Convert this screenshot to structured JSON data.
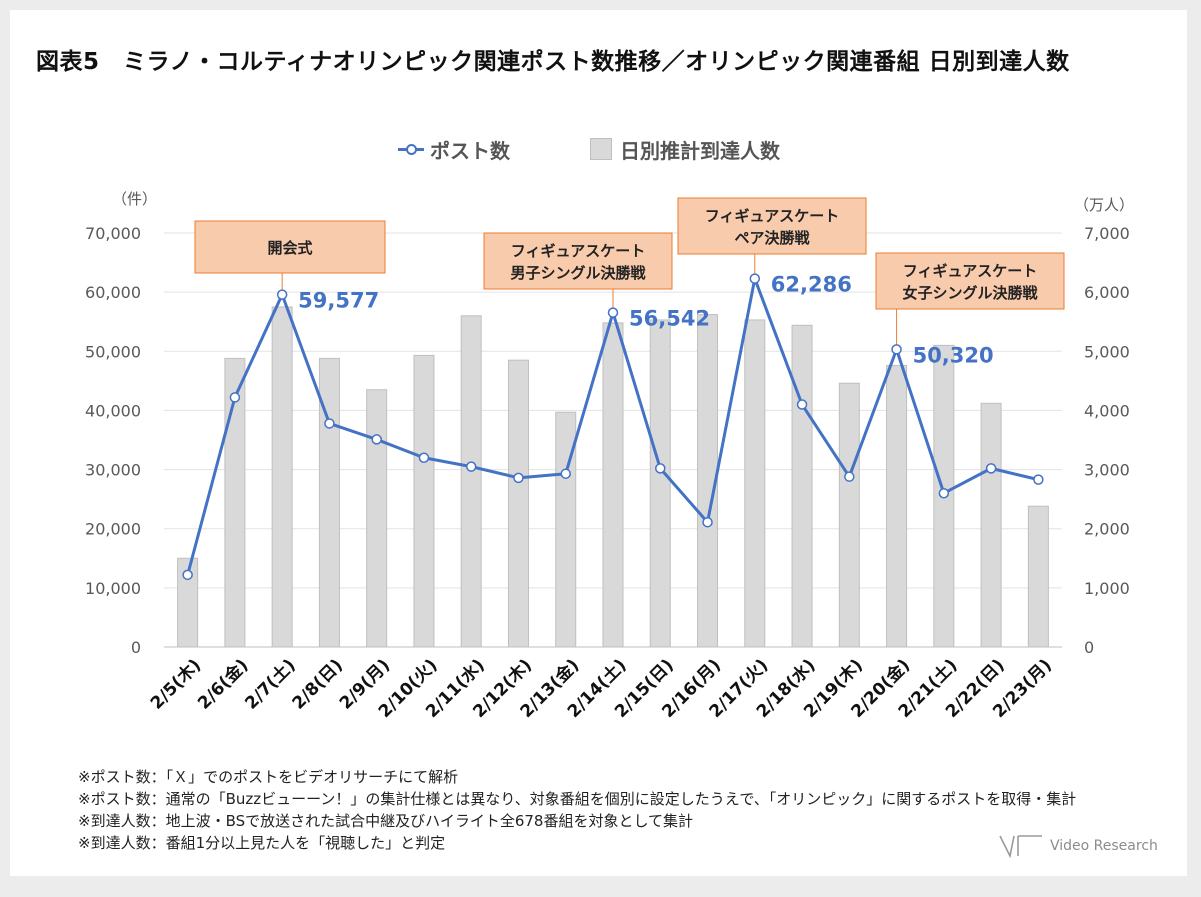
{
  "title": "図表5　ミラノ・コルティナオリンピック関連ポスト数推移／オリンピック関連番組 日別到達人数",
  "legend": {
    "line_label": "ポスト数",
    "bar_label": "日別推計到達人数"
  },
  "colors": {
    "line": "#4472c4",
    "bar": "#d9d9d9",
    "bar_stroke": "#bfbfbf",
    "callout_fill": "#f8cbad",
    "callout_border": "#ed7d31",
    "value_label": "#4472c4"
  },
  "chart_data": {
    "type": "bar",
    "categories": [
      "2/5(木)",
      "2/6(金)",
      "2/7(土)",
      "2/8(日)",
      "2/9(月)",
      "2/10(火)",
      "2/11(水)",
      "2/12(木)",
      "2/13(金)",
      "2/14(土)",
      "2/15(日)",
      "2/16(月)",
      "2/17(火)",
      "2/18(水)",
      "2/19(木)",
      "2/20(金)",
      "2/21(土)",
      "2/22(日)",
      "2/23(月)"
    ],
    "series": [
      {
        "name": "ポスト数",
        "type": "line",
        "axis": "left",
        "values": [
          12200,
          42200,
          59577,
          37800,
          35100,
          32000,
          30500,
          28600,
          29300,
          56542,
          30200,
          21100,
          62286,
          41000,
          28800,
          50320,
          26000,
          30200,
          28300
        ]
      },
      {
        "name": "日別推計到達人数",
        "type": "bar",
        "axis": "right",
        "values": [
          1500,
          4880,
          5750,
          4880,
          4350,
          4930,
          5600,
          4850,
          3970,
          5480,
          5530,
          5620,
          5530,
          5440,
          4460,
          4760,
          5100,
          4120,
          2380
        ]
      }
    ],
    "left_axis": {
      "unit": "（件）",
      "min": 0,
      "max": 70000,
      "ticks": [
        "0",
        "10,000",
        "20,000",
        "30,000",
        "40,000",
        "50,000",
        "60,000",
        "70,000"
      ]
    },
    "right_axis": {
      "unit": "（万人）",
      "min": 0,
      "max": 7000,
      "ticks": [
        "0",
        "1,000",
        "2,000",
        "3,000",
        "4,000",
        "5,000",
        "6,000",
        "7,000"
      ]
    },
    "grid": true,
    "legend_position": "top",
    "value_labels": [
      {
        "index": 2,
        "text": "59,577"
      },
      {
        "index": 9,
        "text": "56,542"
      },
      {
        "index": 12,
        "text": "62,286"
      },
      {
        "index": 15,
        "text": "50,320"
      }
    ],
    "callouts": [
      {
        "index": 2,
        "lines": [
          "開会式"
        ]
      },
      {
        "index": 9,
        "lines": [
          "フィギュアスケート",
          "男子シングル決勝戦"
        ]
      },
      {
        "index": 12,
        "lines": [
          "フィギュアスケート",
          "ペア決勝戦"
        ]
      },
      {
        "index": 15,
        "lines": [
          "フィギュアスケート",
          "女子シングル決勝戦"
        ]
      }
    ]
  },
  "notes": [
    "※ポスト数：「Ｘ」でのポストをビデオリサーチにて解析",
    "※ポスト数：通常の「Buzzビューーン！」の集計仕様とは異なり、対象番組を個別に設定したうえで、「オリンピック」に関するポストを取得・集計",
    "※到達人数：地上波・BSで放送された試合中継及びハイライト全678番組を対象として集計",
    "※到達人数：番組1分以上見た人を「視聴した」と判定"
  ],
  "logo": {
    "text": "Video Research",
    "icon": "video-research-logo-icon"
  }
}
